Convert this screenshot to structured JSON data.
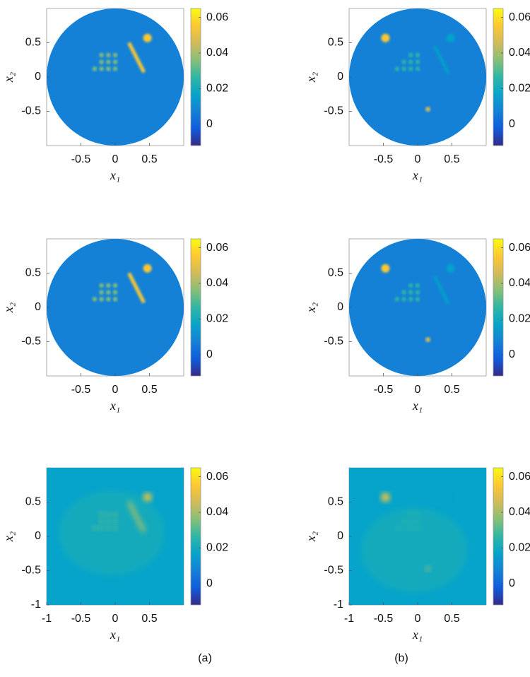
{
  "chart_data": [
    {
      "type": "heatmap",
      "xlabel": "x₁",
      "ylabel": "x₂",
      "xlim": [
        -1,
        1
      ],
      "ylim": [
        -1,
        1
      ],
      "xticks": [
        -0.5,
        0,
        0.5
      ],
      "yticks": [
        -0.5,
        0,
        0.5
      ],
      "clim": [
        -0.012,
        0.065
      ],
      "cticks": [
        0,
        0.02,
        0.04,
        0.06
      ],
      "colormap": [
        "#352a87",
        "#0f5cdd",
        "#1481d6",
        "#06a4ca",
        "#2eb7a4",
        "#87bf77",
        "#d1bb59",
        "#fec832",
        "#f9fb0e"
      ]
    },
    {
      "type": "heatmap",
      "xlabel": "x₁",
      "ylabel": "x₂",
      "xlim": [
        -1,
        1
      ],
      "ylim": [
        -1,
        1
      ],
      "xticks": [
        -0.5,
        0,
        0.5
      ],
      "yticks": [
        -0.5,
        0,
        0.5
      ],
      "clim": [
        -0.012,
        0.065
      ],
      "cticks": [
        0,
        0.02,
        0.04,
        0.06
      ],
      "colormap": [
        "#352a87",
        "#0f5cdd",
        "#1481d6",
        "#06a4ca",
        "#2eb7a4",
        "#87bf77",
        "#d1bb59",
        "#fec832",
        "#f9fb0e"
      ]
    },
    {
      "type": "heatmap",
      "xlabel": "x₁",
      "ylabel": "x₂",
      "xlim": [
        -1,
        1
      ],
      "ylim": [
        -1,
        1
      ],
      "xticks": [
        -0.5,
        0,
        0.5
      ],
      "yticks": [
        -0.5,
        0,
        0.5
      ],
      "clim": [
        -0.012,
        0.065
      ],
      "cticks": [
        0,
        0.02,
        0.04,
        0.06
      ],
      "colormap": [
        "#352a87",
        "#0f5cdd",
        "#1481d6",
        "#06a4ca",
        "#2eb7a4",
        "#87bf77",
        "#d1bb59",
        "#fec832",
        "#f9fb0e"
      ]
    },
    {
      "type": "heatmap",
      "xlabel": "x₁",
      "ylabel": "x₂",
      "xlim": [
        -1,
        1
      ],
      "ylim": [
        -1,
        1
      ],
      "xticks": [
        -0.5,
        0,
        0.5
      ],
      "yticks": [
        -0.5,
        0,
        0.5
      ],
      "clim": [
        -0.012,
        0.065
      ],
      "cticks": [
        0,
        0.02,
        0.04,
        0.06
      ],
      "colormap": [
        "#352a87",
        "#0f5cdd",
        "#1481d6",
        "#06a4ca",
        "#2eb7a4",
        "#87bf77",
        "#d1bb59",
        "#fec832",
        "#f9fb0e"
      ]
    },
    {
      "type": "heatmap",
      "xlabel": "x₁",
      "ylabel": "x₂",
      "xlim": [
        -1,
        1
      ],
      "ylim": [
        -1,
        1
      ],
      "xticks": [
        -1,
        -0.5,
        0,
        0.5
      ],
      "yticks": [
        -1,
        -0.5,
        0,
        0.5
      ],
      "clim": [
        -0.012,
        0.065
      ],
      "cticks": [
        0,
        0.02,
        0.04,
        0.06
      ],
      "colormap": [
        "#352a87",
        "#0f5cdd",
        "#1481d6",
        "#06a4ca",
        "#2eb7a4",
        "#87bf77",
        "#d1bb59",
        "#fec832",
        "#f9fb0e"
      ]
    },
    {
      "type": "heatmap",
      "xlabel": "x₁",
      "ylabel": "x₂",
      "xlim": [
        -1,
        1
      ],
      "ylim": [
        -1,
        1
      ],
      "xticks": [
        -1,
        -0.5,
        0,
        0.5
      ],
      "yticks": [
        -1,
        -0.5,
        0,
        0.5
      ],
      "clim": [
        -0.012,
        0.065
      ],
      "cticks": [
        0,
        0.02,
        0.04,
        0.06
      ],
      "colormap": [
        "#352a87",
        "#0f5cdd",
        "#1481d6",
        "#06a4ca",
        "#2eb7a4",
        "#87bf77",
        "#d1bb59",
        "#fec832",
        "#f9fb0e"
      ]
    }
  ],
  "captions": [
    "(a)",
    "(b)"
  ]
}
